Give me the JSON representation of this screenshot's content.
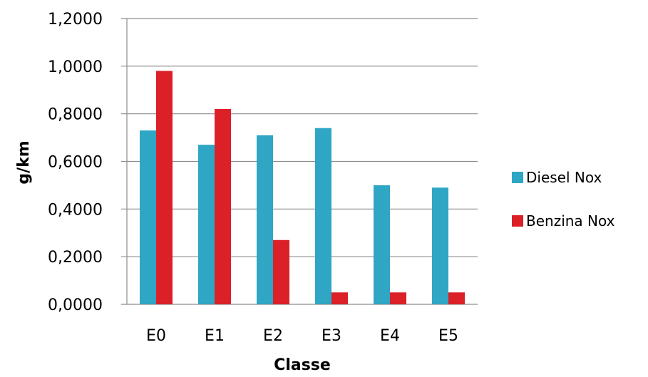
{
  "chart_data": {
    "type": "bar",
    "categories": [
      "E0",
      "E1",
      "E2",
      "E3",
      "E4",
      "E5"
    ],
    "series": [
      {
        "name": "Diesel Nox",
        "color": "#2ea6c4",
        "values": [
          0.73,
          0.67,
          0.71,
          0.74,
          0.5,
          0.49
        ]
      },
      {
        "name": "Benzina Nox",
        "color": "#dc2028",
        "values": [
          0.98,
          0.82,
          0.27,
          0.05,
          0.05,
          0.05
        ]
      }
    ],
    "xlabel": "Classe",
    "ylabel": "g/km",
    "ylim": [
      0,
      1.2
    ],
    "yticks": [
      "0,0000",
      "0,2000",
      "0,4000",
      "0,6000",
      "0,8000",
      "1,0000",
      "1,2000"
    ],
    "grid": true,
    "legend": "right"
  }
}
